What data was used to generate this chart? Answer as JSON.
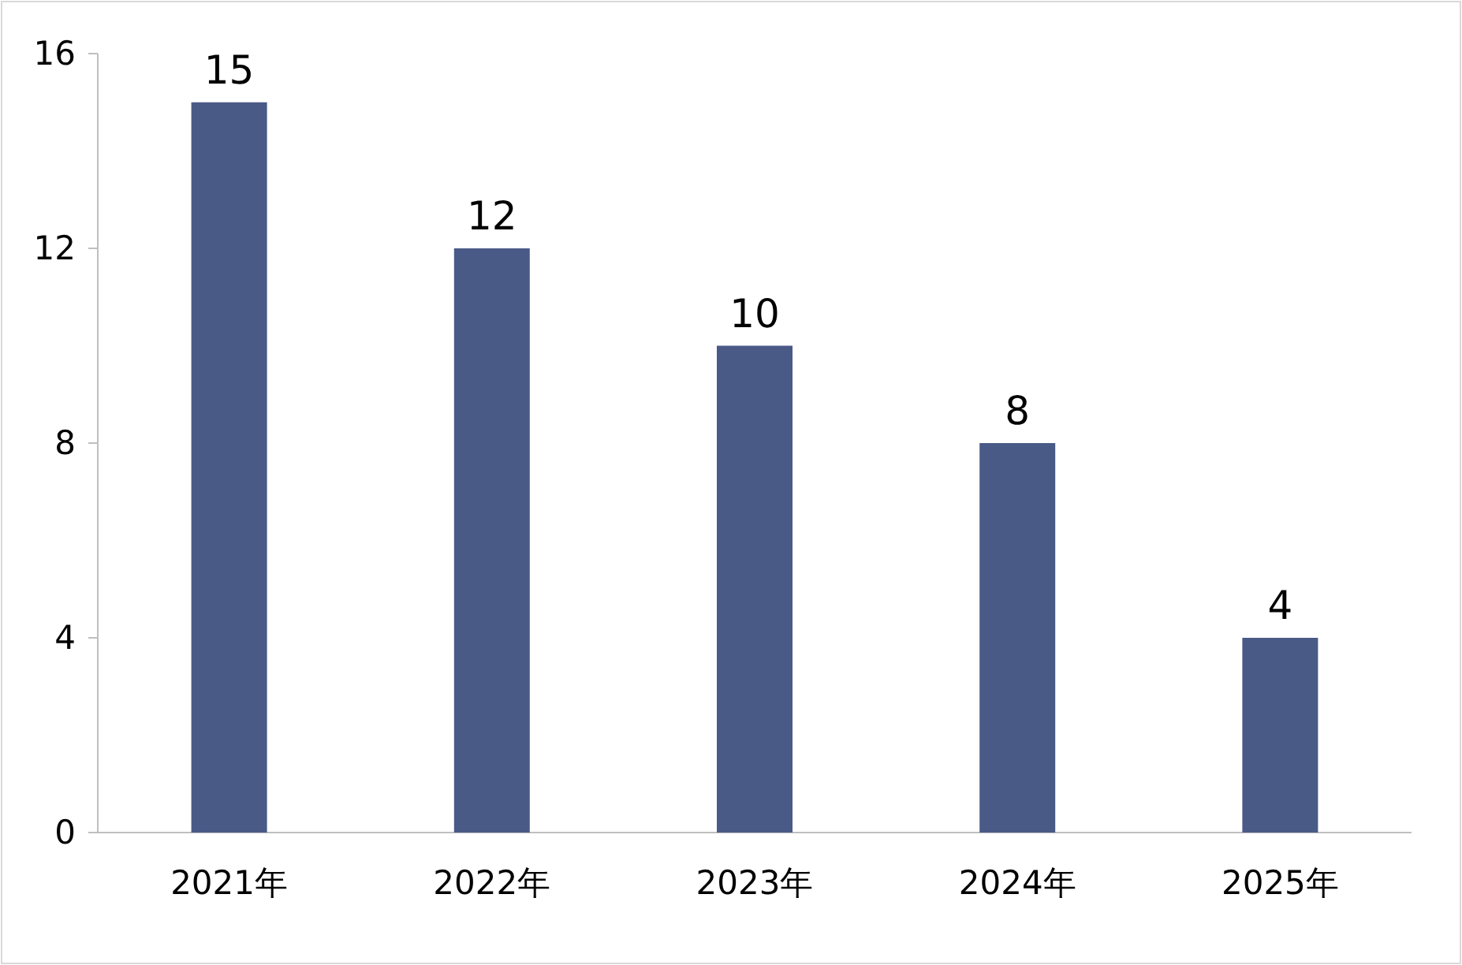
{
  "chart_data": {
    "type": "bar",
    "categories": [
      "2021年",
      "2022年",
      "2023年",
      "2024年",
      "2025年"
    ],
    "values": [
      15,
      12,
      10,
      8,
      4
    ],
    "color": "#4a5a87",
    "ylim": [
      0,
      16
    ],
    "yticks": [
      0,
      4,
      8,
      12,
      16
    ],
    "data_labels": true
  }
}
